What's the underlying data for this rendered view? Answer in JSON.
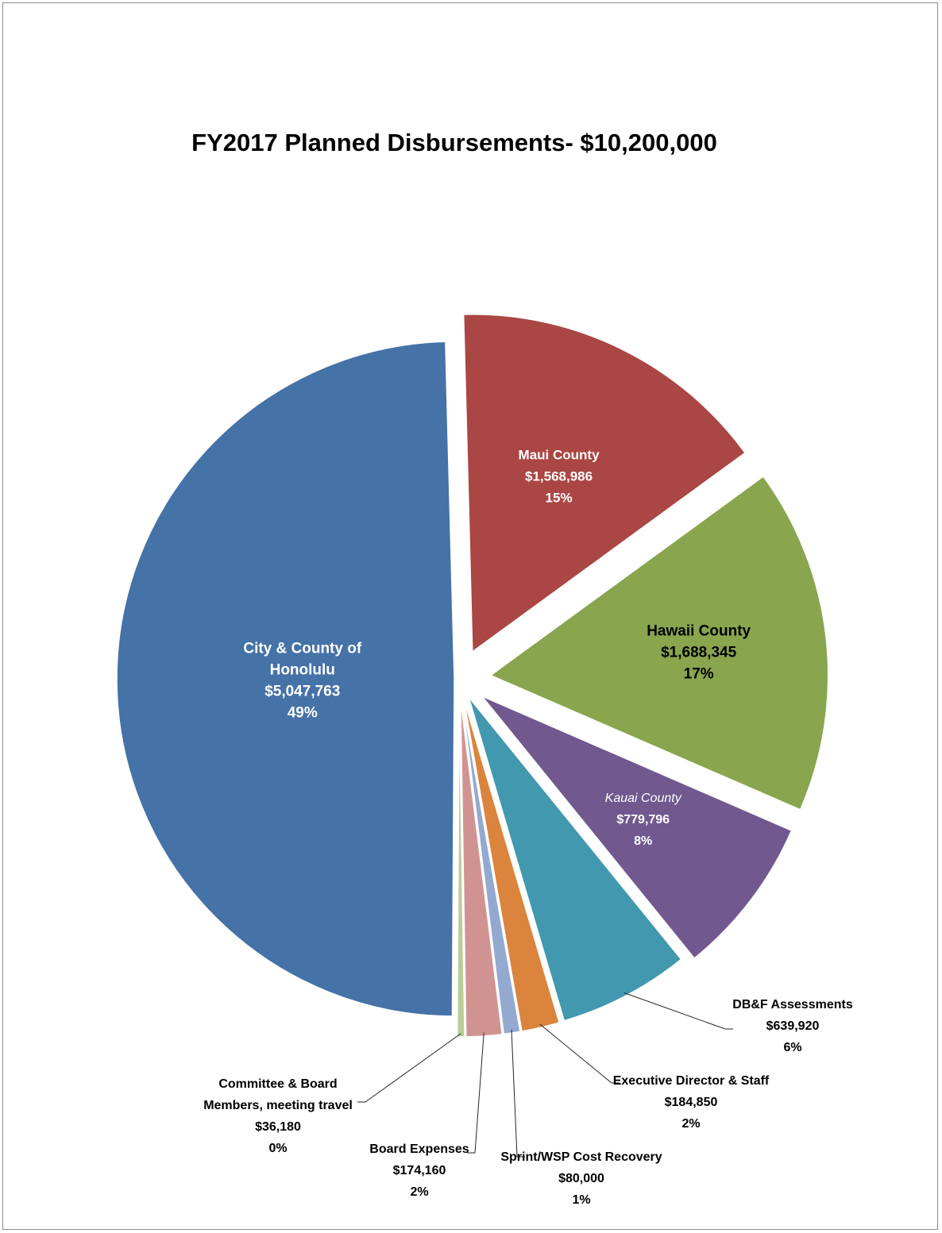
{
  "chart_data": {
    "type": "pie",
    "title": "FY2017 Planned Disbursements-  $10,200,000",
    "slices": [
      {
        "name": "Maui County",
        "value": 1568986,
        "value_label": "$1,568,986",
        "percent_label": "15%",
        "color": "#AA4643",
        "label_color": "#ffffff",
        "label_lines": [
          "Maui County",
          "$1,568,986",
          "15%"
        ],
        "label_place": "inside"
      },
      {
        "name": "Hawaii County",
        "value": 1688345,
        "value_label": "$1,688,345",
        "percent_label": "17%",
        "color": "#89A54E",
        "label_color": "#000000",
        "label_lines": [
          "Hawaii County",
          "$1,688,345",
          "17%"
        ],
        "label_place": "inside"
      },
      {
        "name": "Kauai County",
        "value": 779796,
        "value_label": "$779,796",
        "percent_label": "8%",
        "color": "#71588F",
        "label_color": "#ffffff",
        "label_lines": [
          "Kauai County",
          "$779,796",
          "8%"
        ],
        "label_place": "inside"
      },
      {
        "name": "DB&F Assessments",
        "value": 639920,
        "value_label": "$639,920",
        "percent_label": "6%",
        "color": "#4198AF",
        "label_color": "#000000",
        "label_lines": [
          "DB&F Assessments",
          "$639,920",
          "6%"
        ],
        "label_place": "outside"
      },
      {
        "name": "Executive Director & Staff",
        "value": 184850,
        "value_label": "$184,850",
        "percent_label": "2%",
        "color": "#DB843D",
        "label_color": "#000000",
        "label_lines": [
          "Executive Director & Staff",
          "$184,850",
          "2%"
        ],
        "label_place": "outside"
      },
      {
        "name": "Sprint/WSP Cost Recovery",
        "value": 80000,
        "value_label": "$80,000",
        "percent_label": "1%",
        "color": "#93A9CF",
        "label_color": "#000000",
        "label_lines": [
          "Sprint/WSP Cost Recovery",
          "$80,000",
          "1%"
        ],
        "label_place": "outside"
      },
      {
        "name": "Board Expenses",
        "value": 174160,
        "value_label": "$174,160",
        "percent_label": "2%",
        "color": "#D19392",
        "label_color": "#000000",
        "label_lines": [
          "Board Expenses",
          "$174,160",
          "2%"
        ],
        "label_place": "outside"
      },
      {
        "name": "Committee & Board Members,  meeting travel",
        "value": 36180,
        "value_label": "$36,180",
        "percent_label": "0%",
        "color": "#B9CD96",
        "label_color": "#000000",
        "label_lines": [
          "Committee & Board",
          "Members,  meeting travel",
          "$36,180",
          "0%"
        ],
        "label_place": "outside"
      },
      {
        "name": "City & County of Honolulu",
        "value": 5047763,
        "value_label": "$5,047,763",
        "percent_label": "49%",
        "color": "#4572A7",
        "label_color": "#ffffff",
        "label_lines": [
          "City & County of",
          "Honolulu",
          "$5,047,763",
          "49%"
        ],
        "label_place": "inside"
      }
    ]
  }
}
